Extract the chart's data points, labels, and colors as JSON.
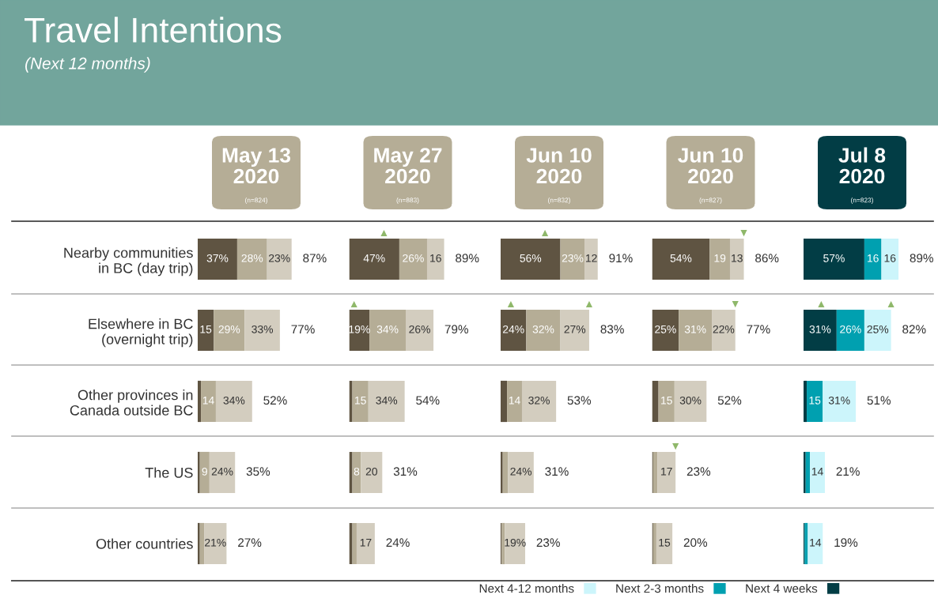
{
  "chart_data": [
    {
      "type": "other",
      "title": "Travel Intentions",
      "subtitle": "(Next 12 months)"
    },
    {
      "type": "bar",
      "orientation": "horizontal",
      "stacked": true,
      "title": "May 13\n2020",
      "subtitle": "(n=824)",
      "tick_labels": "y",
      "categories": [
        "Nearby communities\nin BC (day trip)",
        "Elsewhere in BC\n(overnight trip)",
        "Other provinces in\nCanada outside BC",
        "The US",
        "Other countries"
      ],
      "series": [
        {
          "color": "#5f5442",
          "values": [
            37,
            15,
            3,
            2,
            2
          ],
          "value_labels": [
            "37%",
            "15",
            null,
            null,
            null
          ]
        },
        {
          "color": "#b5ad96",
          "values": [
            28,
            29,
            14,
            9,
            4
          ],
          "value_labels": [
            "28%",
            "29%",
            "14",
            "9",
            null
          ]
        },
        {
          "color": "#d3cdbf",
          "values": [
            23,
            33,
            34,
            24,
            21
          ],
          "value_labels": [
            "23%",
            "33%",
            "34%",
            "24%",
            "21%"
          ]
        }
      ],
      "totals": [
        "87%",
        "77%",
        "52%",
        "35%",
        "27%"
      ]
    },
    {
      "type": "bar",
      "orientation": "horizontal",
      "stacked": true,
      "title": "May 27\n2020",
      "subtitle": "(n=883)",
      "tick_labels": false,
      "categories": [
        "Nearby communities\nin BC (day trip)",
        "Elsewhere in BC\n(overnight trip)",
        "Other provinces in\nCanada outside BC",
        "The US",
        "Other countries"
      ],
      "series": [
        {
          "color": "#5f5442",
          "values": [
            47,
            19,
            3,
            3,
            3
          ],
          "value_labels": [
            "47%",
            "19%",
            null,
            null,
            null
          ]
        },
        {
          "color": "#b5ad96",
          "values": [
            26,
            34,
            15,
            8,
            4
          ],
          "value_labels": [
            "26%",
            "34%",
            "15",
            "8",
            null
          ]
        },
        {
          "color": "#d3cdbf",
          "values": [
            16,
            26,
            34,
            20,
            17
          ],
          "value_labels": [
            "16",
            "26%",
            "34%",
            "20",
            "17"
          ]
        }
      ],
      "totals": [
        "89%",
        "79%",
        "54%",
        "31%",
        "24%"
      ],
      "annotations": [
        {
          "text": "▲",
          "x": 47,
          "y": "Nearby communities\nin BC (day trip)"
        },
        {
          "text": "▲",
          "x": 19,
          "y": "Elsewhere in BC\n(overnight trip)"
        }
      ]
    },
    {
      "type": "bar",
      "orientation": "horizontal",
      "stacked": true,
      "title": "Jun 10\n2020",
      "subtitle": "(n=832)",
      "tick_labels": false,
      "categories": [
        "Nearby communities\nin BC (day trip)",
        "Elsewhere in BC\n(overnight trip)",
        "Other provinces in\nCanada outside BC",
        "The US",
        "Other countries"
      ],
      "series": [
        {
          "color": "#5f5442",
          "values": [
            56,
            24,
            6,
            2,
            1
          ],
          "value_labels": [
            "56%",
            "24%",
            null,
            null,
            null
          ]
        },
        {
          "color": "#b5ad96",
          "values": [
            23,
            32,
            14,
            5,
            3
          ],
          "value_labels": [
            "23%",
            "32%",
            "14",
            null,
            null
          ]
        },
        {
          "color": "#d3cdbf",
          "values": [
            12,
            27,
            32,
            24,
            19
          ],
          "value_labels": [
            "12",
            "27%",
            "32%",
            "24%",
            "19%"
          ]
        }
      ],
      "totals": [
        "91%",
        "83%",
        "53%",
        "31%",
        "23%"
      ],
      "annotations": [
        {
          "text": "▲",
          "x": 56,
          "y": "Nearby communities\nin BC (day trip)"
        },
        {
          "text": "▲",
          "x": 24,
          "y": "Elsewhere in BC\n(overnight trip)"
        },
        {
          "text": "▲",
          "x": 83,
          "y": "Elsewhere in BC\n(overnight trip)"
        }
      ]
    },
    {
      "type": "bar",
      "orientation": "horizontal",
      "stacked": true,
      "title": "Jun 10\n2020",
      "subtitle": "(n=827)",
      "tick_labels": false,
      "categories": [
        "Nearby communities\nin BC (day trip)",
        "Elsewhere in BC\n(overnight trip)",
        "Other provinces in\nCanada outside BC",
        "The US",
        "Other countries"
      ],
      "series": [
        {
          "color": "#5f5442",
          "values": [
            54,
            25,
            6,
            1,
            1
          ],
          "value_labels": [
            "54%",
            "25%",
            null,
            null,
            null
          ]
        },
        {
          "color": "#b5ad96",
          "values": [
            19,
            31,
            15,
            4,
            3
          ],
          "value_labels": [
            "19",
            "31%",
            "15",
            null,
            null
          ]
        },
        {
          "color": "#d3cdbf",
          "values": [
            13,
            22,
            30,
            17,
            15
          ],
          "value_labels": [
            "13",
            "22%",
            "30%",
            "17",
            "15"
          ]
        }
      ],
      "totals": [
        "86%",
        "77%",
        "52%",
        "23%",
        "20%"
      ],
      "annotations": [
        {
          "text": "▼",
          "x": 86,
          "y": "Nearby communities\nin BC (day trip)"
        },
        {
          "text": "▼",
          "x": 78,
          "y": "Elsewhere in BC\n(overnight trip)"
        },
        {
          "text": "▼",
          "x": 22,
          "y": "The US"
        }
      ]
    },
    {
      "type": "bar",
      "orientation": "horizontal",
      "stacked": true,
      "title": "Jul 8\n2020",
      "subtitle": "(n=823)",
      "tick_labels": false,
      "legend": "bottom",
      "categories": [
        "Nearby communities\nin BC (day trip)",
        "Elsewhere in BC\n(overnight trip)",
        "Other provinces in\nCanada outside BC",
        "The US",
        "Other countries"
      ],
      "series": [
        {
          "name": "Next 4 weeks",
          "color": "#023d45",
          "values": [
            57,
            31,
            3,
            2,
            1
          ],
          "value_labels": [
            "57%",
            "31%",
            null,
            null,
            null
          ]
        },
        {
          "name": "Next 2-3 months",
          "color": "#00a0b0",
          "values": [
            16,
            26,
            15,
            4,
            3
          ],
          "value_labels": [
            "16",
            "26%",
            "15",
            null,
            null
          ]
        },
        {
          "name": "Next 4-12 months",
          "color": "#ccf5fb",
          "values": [
            16,
            25,
            31,
            14,
            14
          ],
          "value_labels": [
            "16",
            "25%",
            "31%",
            "14",
            "14"
          ]
        }
      ],
      "totals": [
        "89%",
        "82%",
        "51%",
        "21%",
        "19%"
      ],
      "annotations": [
        {
          "text": "▲",
          "x": 31,
          "y": "Elsewhere in BC\n(overnight trip)"
        },
        {
          "text": "▲",
          "x": 82,
          "y": "Elsewhere in BC\n(overnight trip)"
        }
      ]
    }
  ]
}
